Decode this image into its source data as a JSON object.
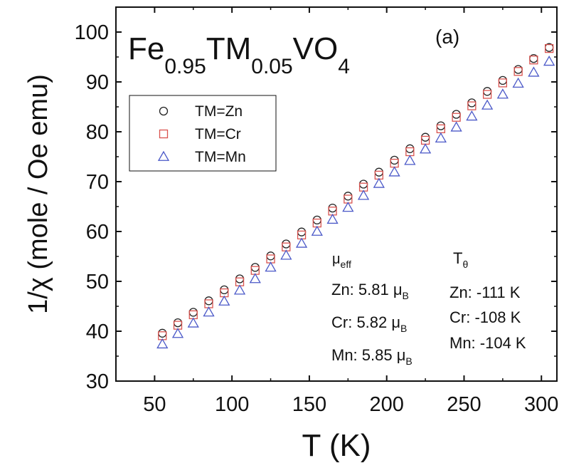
{
  "chart_data": {
    "type": "scatter",
    "title": {
      "base1": "Fe",
      "sub1": "0.95",
      "base2": "TM",
      "sub2": "0.05",
      "base3": "VO",
      "sub3": "4"
    },
    "panel_label": "(a)",
    "xlabel": "T (K)",
    "ylabel": "1/χ (mole / Oe emu)",
    "xlim": [
      25,
      310
    ],
    "ylim": [
      30,
      105
    ],
    "xticks": [
      50,
      100,
      150,
      200,
      250,
      300
    ],
    "yticks": [
      30,
      40,
      50,
      60,
      70,
      80,
      90,
      100
    ],
    "grid": false,
    "legend_position": "upper-left",
    "x": [
      55,
      65,
      75,
      85,
      95,
      105,
      115,
      125,
      135,
      145,
      155,
      165,
      175,
      185,
      195,
      205,
      215,
      225,
      235,
      245,
      255,
      265,
      275,
      285,
      295,
      305
    ],
    "series": [
      {
        "name": "TM=Zn",
        "marker": "circle",
        "color": "#222222",
        "values": [
          39.6,
          41.7,
          43.8,
          46.1,
          48.3,
          50.5,
          52.8,
          55.1,
          57.5,
          59.9,
          62.3,
          64.7,
          67.1,
          69.5,
          71.9,
          74.3,
          76.6,
          78.9,
          81.2,
          83.5,
          85.8,
          88.1,
          90.3,
          92.5,
          94.7,
          96.9
        ]
      },
      {
        "name": "TM=Cr",
        "marker": "square",
        "color": "#d9534f",
        "values": [
          39.1,
          41.2,
          43.3,
          45.5,
          47.7,
          49.9,
          52.2,
          54.5,
          56.9,
          59.3,
          61.7,
          64.1,
          66.5,
          68.9,
          71.3,
          73.7,
          76.0,
          78.3,
          80.6,
          82.9,
          85.2,
          87.5,
          89.8,
          92.1,
          94.4,
          96.7
        ]
      },
      {
        "name": "TM=Mn",
        "marker": "triangle",
        "color": "#4a58c8",
        "values": [
          37.4,
          39.5,
          41.6,
          43.8,
          46.0,
          48.2,
          50.5,
          52.8,
          55.2,
          57.6,
          60.0,
          62.4,
          64.8,
          67.2,
          69.6,
          71.9,
          74.2,
          76.5,
          78.7,
          80.9,
          83.1,
          85.3,
          87.5,
          89.7,
          91.9,
          94.1
        ]
      }
    ],
    "annotations": {
      "mu_header_base": "μ",
      "mu_header_sub": "eff",
      "theta_header_base": "T",
      "theta_header_sub": "θ",
      "mu_rows": [
        {
          "label": "Zn: 5.81 μ",
          "sub": "B"
        },
        {
          "label": "Cr: 5.82 μ",
          "sub": "B"
        },
        {
          "label": "Mn: 5.85 μ",
          "sub": "B"
        }
      ],
      "theta_rows": [
        "Zn: -111 K",
        "Cr: -108 K",
        "Mn: -104 K"
      ]
    }
  }
}
